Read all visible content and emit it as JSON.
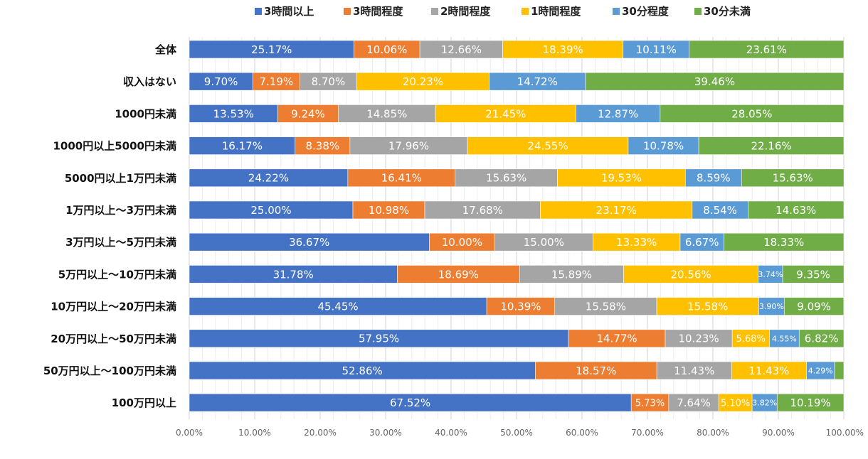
{
  "chart_data": {
    "type": "bar",
    "orientation": "horizontal",
    "stacked": true,
    "legend_position": "top",
    "grid": true,
    "xlim": [
      0,
      100
    ],
    "x_ticks": [
      "0.00%",
      "10.00%",
      "20.00%",
      "30.00%",
      "40.00%",
      "50.00%",
      "60.00%",
      "70.00%",
      "80.00%",
      "90.00%",
      "100.00%"
    ],
    "categories": [
      "全体",
      "収入はない",
      "1000円未満",
      "1000円以上5000円未満",
      "5000円以上1万円未満",
      "1万円以上～3万円未満",
      "3万円以上～5万円未満",
      "5万円以上～10万円未満",
      "10万円以上～20万円未満",
      "20万円以上～50万円未満",
      "50万円以上～100万円未満",
      "100万円以上"
    ],
    "series": [
      {
        "name": "3時間以上",
        "color": "#4472C4",
        "values": [
          25.17,
          9.7,
          13.53,
          16.17,
          24.22,
          25.0,
          36.67,
          31.78,
          45.45,
          57.95,
          52.86,
          67.52
        ],
        "labels": [
          "25.17%",
          "9.70%",
          "13.53%",
          "16.17%",
          "24.22%",
          "25.00%",
          "36.67%",
          "31.78%",
          "45.45%",
          "57.95%",
          "52.86%",
          "67.52%"
        ]
      },
      {
        "name": "3時間程度",
        "color": "#ED7D31",
        "values": [
          10.06,
          7.19,
          9.24,
          8.38,
          16.41,
          10.98,
          10.0,
          18.69,
          10.39,
          14.77,
          18.57,
          5.73
        ],
        "labels": [
          "10.06%",
          "7.19%",
          "9.24%",
          "8.38%",
          "16.41%",
          "10.98%",
          "10.00%",
          "18.69%",
          "10.39%",
          "14.77%",
          "18.57%",
          "5.73%"
        ]
      },
      {
        "name": "2時間程度",
        "color": "#A5A5A5",
        "values": [
          12.66,
          8.7,
          14.85,
          17.96,
          15.63,
          17.68,
          15.0,
          15.89,
          15.58,
          10.23,
          11.43,
          7.64
        ],
        "labels": [
          "12.66%",
          "8.70%",
          "14.85%",
          "17.96%",
          "15.63%",
          "17.68%",
          "15.00%",
          "15.89%",
          "15.58%",
          "10.23%",
          "11.43%",
          "7.64%"
        ]
      },
      {
        "name": "1時間程度",
        "color": "#FFC000",
        "values": [
          18.39,
          20.23,
          21.45,
          24.55,
          19.53,
          23.17,
          13.33,
          20.56,
          15.58,
          5.68,
          11.43,
          5.1
        ],
        "labels": [
          "18.39%",
          "20.23%",
          "21.45%",
          "24.55%",
          "19.53%",
          "23.17%",
          "13.33%",
          "20.56%",
          "15.58%",
          "5.68%",
          "11.43%",
          "5.10%"
        ]
      },
      {
        "name": "30分程度",
        "color": "#5B9BD5",
        "values": [
          10.11,
          14.72,
          12.87,
          10.78,
          8.59,
          8.54,
          6.67,
          3.74,
          3.9,
          4.55,
          4.29,
          3.82
        ],
        "labels": [
          "10.11%",
          "14.72%",
          "12.87%",
          "10.78%",
          "8.59%",
          "8.54%",
          "6.67%",
          "3.74%",
          "3.90%",
          "4.55%",
          "4.29%",
          "3.82%"
        ]
      },
      {
        "name": "30分未満",
        "color": "#70AD47",
        "values": [
          23.61,
          39.46,
          28.05,
          22.16,
          15.63,
          14.63,
          18.33,
          9.35,
          9.09,
          6.82,
          1.42,
          10.19
        ],
        "labels": [
          "23.61%",
          "39.46%",
          "28.05%",
          "22.16%",
          "15.63%",
          "14.63%",
          "18.33%",
          "9.35%",
          "9.09%",
          "6.82%",
          "",
          "10.19%"
        ]
      }
    ]
  }
}
